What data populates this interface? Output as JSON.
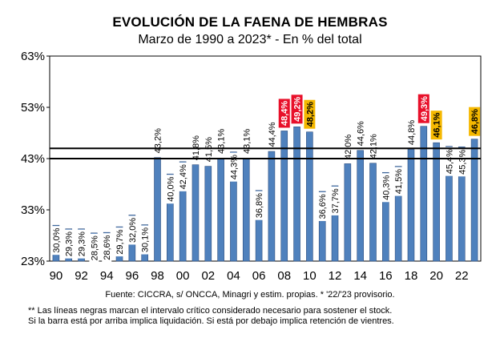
{
  "chart_data": {
    "type": "bar",
    "title": "EVOLUCIÓN DE LA FAENA DE HEMBRAS",
    "subtitle": "Marzo de 1990 a 2023* - En % del total",
    "yticks": [
      "23%",
      "33%",
      "43%",
      "53%",
      "63%"
    ],
    "ylim": [
      23,
      63
    ],
    "xticks": [
      "90",
      "92",
      "94",
      "96",
      "98",
      "00",
      "02",
      "04",
      "06",
      "08",
      "10",
      "12",
      "14",
      "16",
      "18",
      "20",
      "22"
    ],
    "years": [
      1990,
      1991,
      1992,
      1993,
      1994,
      1995,
      1996,
      1997,
      1998,
      1999,
      2000,
      2001,
      2002,
      2003,
      2004,
      2005,
      2006,
      2007,
      2008,
      2009,
      2010,
      2011,
      2012,
      2013,
      2014,
      2015,
      2016,
      2017,
      2018,
      2019,
      2020,
      2021,
      2022,
      2023
    ],
    "values": [
      30.0,
      29.3,
      29.3,
      28.5,
      28.6,
      29.7,
      32.0,
      30.1,
      43.2,
      40.0,
      42.4,
      41.8,
      41.5,
      43.1,
      44.3,
      43.1,
      36.8,
      44.4,
      48.4,
      49.2,
      48.2,
      36.6,
      37.7,
      42.0,
      44.6,
      42.1,
      40.3,
      41.5,
      44.8,
      49.3,
      46.1,
      45.4,
      45.3,
      46.8
    ],
    "labels": [
      "30,0%",
      "29,3%",
      "29,3%",
      "28,5%",
      "28,6%",
      "29,7%",
      "32,0%",
      "30,1%",
      "43,2%",
      "40,0%",
      "42,4%",
      "41,8%",
      "41,5%",
      "43,1%",
      "44,3%",
      "43,1%",
      "36,8%",
      "44,4%",
      "48,4%",
      "49,2%",
      "48,2%",
      "36,6%",
      "37,7%",
      "42,0%",
      "44,6%",
      "42,1%",
      "40,3%",
      "41,5%",
      "44,8%",
      "49,3%",
      "46,1%",
      "45,4%",
      "45,3%",
      "46,8%"
    ],
    "label_style": [
      "in",
      "in",
      "in",
      "in",
      "in",
      "in",
      "in",
      "in",
      "above",
      "in",
      "in",
      "above",
      "above",
      "above",
      "in",
      "above",
      "in",
      "above",
      "red",
      "red",
      "orange",
      "in",
      "in",
      "above",
      "above",
      "above",
      "in",
      "in",
      "above",
      "red",
      "orange",
      "in",
      "in",
      "orange"
    ],
    "reference_lines": [
      43.0,
      45.0
    ],
    "colors": {
      "bar": "#4f81bd",
      "bar_edge": "#2f4f7f",
      "highlight_red": "#e8102a",
      "highlight_orange": "#f5b800",
      "reference_line": "#000000"
    }
  },
  "footer": {
    "source": "Fuente: CICCRA, s/ ONCCA, Minagri y estim. propias. * '22/'23  provisorio.",
    "note1": "** Las líneas negras marcan el intervalo crítico considerado necesario para sostener el stock.",
    "note2": "Si la barra está por arriba implica liquidación. Si está por debajo implica retención de vientres."
  }
}
